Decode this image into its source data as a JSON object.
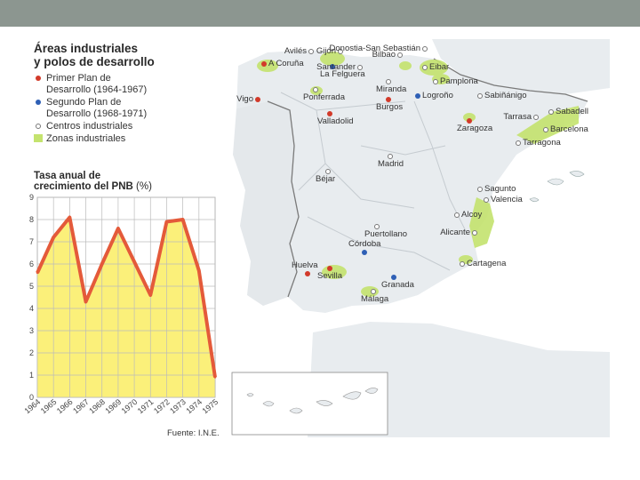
{
  "legend": {
    "title_line1": "Áreas industriales",
    "title_line2": "y polos de desarrollo",
    "items": [
      {
        "label_line1": "Primer Plan de",
        "label_line2": "Desarrollo (1964-1967)",
        "color": "#d23a2a",
        "marker": "dot"
      },
      {
        "label_line1": "Segundo Plan de",
        "label_line2": "Desarrollo (1968-1971)",
        "color": "#2e5fb5",
        "marker": "dot"
      },
      {
        "label_line1": "Centros industriales",
        "label_line2": "",
        "color": "#777777",
        "marker": "ring"
      },
      {
        "label_line1": "Zonas industriales",
        "label_line2": "",
        "color": "#bfe06a",
        "marker": "swatch"
      }
    ]
  },
  "map": {
    "colors": {
      "land": "#e8ecef",
      "sea": "#ffffff",
      "border": "#7a7a7a",
      "industrial": "#c4e36e"
    },
    "cities": [
      {
        "name": "Avilés",
        "type": "center"
      },
      {
        "name": "Gijón",
        "type": "center"
      },
      {
        "name": "Bilbao",
        "type": "center"
      },
      {
        "name": "Donostia-San Sebastián",
        "type": "center"
      },
      {
        "name": "A Coruña",
        "type": "plan1"
      },
      {
        "name": "La Felguera",
        "type": "plan2"
      },
      {
        "name": "Santander",
        "type": "center"
      },
      {
        "name": "Eibar",
        "type": "center"
      },
      {
        "name": "Miranda",
        "type": "center"
      },
      {
        "name": "Pamplona",
        "type": "center"
      },
      {
        "name": "Ponferrada",
        "type": "center"
      },
      {
        "name": "Vigo",
        "type": "plan1"
      },
      {
        "name": "Logroño",
        "type": "plan2"
      },
      {
        "name": "Sabiñánigo",
        "type": "center"
      },
      {
        "name": "Burgos",
        "type": "plan1"
      },
      {
        "name": "Valladolid",
        "type": "plan1"
      },
      {
        "name": "Zaragoza",
        "type": "plan1"
      },
      {
        "name": "Sabadell",
        "type": "center"
      },
      {
        "name": "Tarrasa",
        "type": "center"
      },
      {
        "name": "Barcelona",
        "type": "center"
      },
      {
        "name": "Tarragona",
        "type": "center"
      },
      {
        "name": "Madrid",
        "type": "center"
      },
      {
        "name": "Béjar",
        "type": "center"
      },
      {
        "name": "Sagunto",
        "type": "center"
      },
      {
        "name": "Valencia",
        "type": "center"
      },
      {
        "name": "Alcoy",
        "type": "center"
      },
      {
        "name": "Alicante",
        "type": "center"
      },
      {
        "name": "Puertollano",
        "type": "center"
      },
      {
        "name": "Córdoba",
        "type": "plan2"
      },
      {
        "name": "Huelva",
        "type": "plan1"
      },
      {
        "name": "Granada",
        "type": "plan2"
      },
      {
        "name": "Cartagena",
        "type": "center"
      },
      {
        "name": "Sevilla",
        "type": "plan1"
      },
      {
        "name": "Málaga",
        "type": "center"
      }
    ]
  },
  "chart_data": {
    "type": "area",
    "title_line1": "Tasa anual de",
    "title_line2": "crecimiento del PNB",
    "title_unit": "(%)",
    "categories": [
      "1964",
      "1965",
      "1966",
      "1967",
      "1968",
      "1969",
      "1970",
      "1971",
      "1972",
      "1973",
      "1974",
      "1975"
    ],
    "values": [
      5.6,
      7.2,
      8.1,
      4.3,
      6.0,
      7.6,
      6.1,
      4.6,
      7.9,
      8.0,
      5.7,
      0.9
    ],
    "ylim": [
      0,
      9
    ],
    "yticks": [
      0,
      1,
      2,
      3,
      4,
      5,
      6,
      7,
      8,
      9
    ],
    "grid": true,
    "colors": {
      "fill": "#fbf07a",
      "line": "#e45a3a",
      "grid": "#bbbbbb"
    },
    "source": "Fuente: I.N.E."
  }
}
